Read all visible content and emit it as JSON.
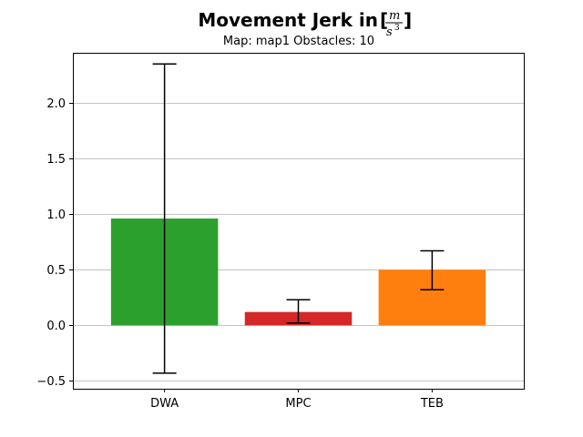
{
  "chart_data": {
    "type": "bar",
    "title": "Movement Jerk in",
    "title_unit": {
      "numerator": "m",
      "denominator": "s",
      "exponent": "3"
    },
    "subtitle": "Map: map1 Obstacles: 10",
    "categories": [
      "DWA",
      "MPC",
      "TEB"
    ],
    "values": [
      0.96,
      0.12,
      0.5
    ],
    "error_low": [
      -0.43,
      0.02,
      0.32
    ],
    "error_high": [
      2.35,
      0.23,
      0.67
    ],
    "colors": [
      "#2ca02c",
      "#d62728",
      "#ff7f0e"
    ],
    "ylim": [
      -0.57,
      2.45
    ],
    "yticks": [
      -0.5,
      0.0,
      0.5,
      1.0,
      1.5,
      2.0
    ],
    "ytick_labels": [
      "−0.5",
      "0.0",
      "0.5",
      "1.0",
      "1.5",
      "2.0"
    ],
    "xlabel": "",
    "ylabel": "",
    "grid": "horizontal"
  }
}
